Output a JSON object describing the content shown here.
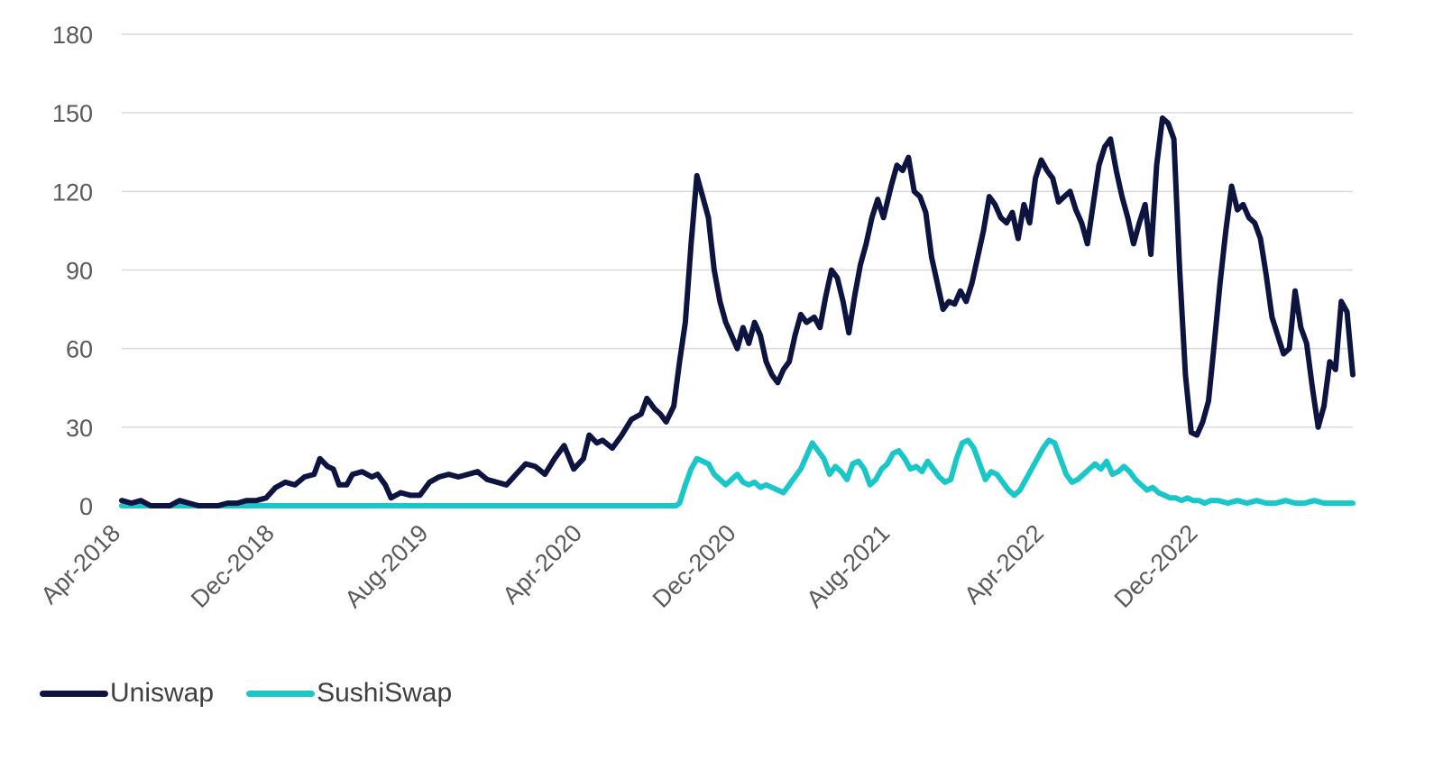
{
  "chart_data": {
    "type": "line",
    "title": "",
    "xlabel": "",
    "ylabel": "",
    "ylim": [
      0,
      180
    ],
    "yticks": [
      0,
      30,
      60,
      90,
      120,
      150,
      180
    ],
    "xlim": [
      0,
      61
    ],
    "xticks": [
      {
        "label": "Apr-2018",
        "x": 0
      },
      {
        "label": "Dec-2018",
        "x": 8
      },
      {
        "label": "Aug-2019",
        "x": 16
      },
      {
        "label": "Apr-2020",
        "x": 24
      },
      {
        "label": "Dec-2020",
        "x": 32
      },
      {
        "label": "Aug-2021",
        "x": 40
      },
      {
        "label": "Apr-2022",
        "x": 48
      },
      {
        "label": "Dec-2022",
        "x": 56
      }
    ],
    "x_unit": "months since Apr-2018",
    "grid": true,
    "legend_position": "bottom-left",
    "series": [
      {
        "name": "Uniswap",
        "color": "#0d1440",
        "points": [
          [
            0,
            2
          ],
          [
            0.5,
            1
          ],
          [
            1,
            2
          ],
          [
            1.5,
            0
          ],
          [
            2,
            0
          ],
          [
            2.5,
            0
          ],
          [
            3,
            2
          ],
          [
            3.5,
            1
          ],
          [
            4,
            0
          ],
          [
            4.5,
            0
          ],
          [
            5,
            0
          ],
          [
            5.5,
            1
          ],
          [
            6,
            1
          ],
          [
            6.5,
            2
          ],
          [
            7,
            2
          ],
          [
            7.5,
            3
          ],
          [
            8,
            7
          ],
          [
            8.5,
            9
          ],
          [
            9,
            8
          ],
          [
            9.5,
            11
          ],
          [
            10,
            12
          ],
          [
            10.3,
            18
          ],
          [
            10.7,
            15
          ],
          [
            11,
            14
          ],
          [
            11.3,
            8
          ],
          [
            11.7,
            8
          ],
          [
            12,
            12
          ],
          [
            12.5,
            13
          ],
          [
            13,
            11
          ],
          [
            13.3,
            12
          ],
          [
            13.7,
            8
          ],
          [
            14,
            3
          ],
          [
            14.5,
            5
          ],
          [
            15,
            4
          ],
          [
            15.5,
            4
          ],
          [
            16,
            9
          ],
          [
            16.5,
            11
          ],
          [
            17,
            12
          ],
          [
            17.5,
            11
          ],
          [
            18,
            12
          ],
          [
            18.5,
            13
          ],
          [
            19,
            10
          ],
          [
            19.5,
            9
          ],
          [
            20,
            8
          ],
          [
            20.5,
            12
          ],
          [
            21,
            16
          ],
          [
            21.5,
            15
          ],
          [
            22,
            12
          ],
          [
            22.5,
            18
          ],
          [
            23,
            23
          ],
          [
            23.5,
            14
          ],
          [
            24,
            18
          ],
          [
            24.3,
            27
          ],
          [
            24.7,
            24
          ],
          [
            25,
            25
          ],
          [
            25.5,
            22
          ],
          [
            26,
            27
          ],
          [
            26.5,
            33
          ],
          [
            27,
            35
          ],
          [
            27.3,
            41
          ],
          [
            27.7,
            37
          ],
          [
            28,
            35
          ],
          [
            28.3,
            32
          ],
          [
            28.7,
            38
          ],
          [
            29,
            55
          ],
          [
            29.3,
            70
          ],
          [
            29.6,
            100
          ],
          [
            29.9,
            126
          ],
          [
            30.2,
            118
          ],
          [
            30.5,
            110
          ],
          [
            30.8,
            90
          ],
          [
            31.1,
            78
          ],
          [
            31.4,
            70
          ],
          [
            31.7,
            65
          ],
          [
            32,
            60
          ],
          [
            32.3,
            68
          ],
          [
            32.6,
            62
          ],
          [
            32.9,
            70
          ],
          [
            33.2,
            65
          ],
          [
            33.5,
            55
          ],
          [
            33.8,
            50
          ],
          [
            34.1,
            47
          ],
          [
            34.4,
            52
          ],
          [
            34.7,
            55
          ],
          [
            35,
            65
          ],
          [
            35.3,
            73
          ],
          [
            35.6,
            70
          ],
          [
            36,
            72
          ],
          [
            36.3,
            68
          ],
          [
            36.6,
            80
          ],
          [
            36.9,
            90
          ],
          [
            37.2,
            87
          ],
          [
            37.5,
            78
          ],
          [
            37.8,
            66
          ],
          [
            38.1,
            80
          ],
          [
            38.4,
            92
          ],
          [
            38.7,
            100
          ],
          [
            39,
            110
          ],
          [
            39.3,
            117
          ],
          [
            39.6,
            110
          ],
          [
            40,
            122
          ],
          [
            40.3,
            130
          ],
          [
            40.6,
            128
          ],
          [
            40.9,
            133
          ],
          [
            41.2,
            120
          ],
          [
            41.5,
            118
          ],
          [
            41.8,
            112
          ],
          [
            42.1,
            95
          ],
          [
            42.4,
            85
          ],
          [
            42.7,
            75
          ],
          [
            43,
            78
          ],
          [
            43.3,
            77
          ],
          [
            43.6,
            82
          ],
          [
            43.9,
            78
          ],
          [
            44.2,
            85
          ],
          [
            44.5,
            95
          ],
          [
            44.8,
            105
          ],
          [
            45.1,
            118
          ],
          [
            45.4,
            115
          ],
          [
            45.7,
            110
          ],
          [
            46,
            108
          ],
          [
            46.3,
            112
          ],
          [
            46.6,
            102
          ],
          [
            46.9,
            115
          ],
          [
            47.2,
            108
          ],
          [
            47.5,
            125
          ],
          [
            47.8,
            132
          ],
          [
            48.1,
            128
          ],
          [
            48.4,
            125
          ],
          [
            48.7,
            116
          ],
          [
            49,
            118
          ],
          [
            49.3,
            120
          ],
          [
            49.6,
            113
          ],
          [
            49.9,
            108
          ],
          [
            50.2,
            100
          ],
          [
            50.5,
            115
          ],
          [
            50.8,
            130
          ],
          [
            51.1,
            137
          ],
          [
            51.4,
            140
          ],
          [
            51.7,
            128
          ],
          [
            52,
            118
          ],
          [
            52.3,
            110
          ],
          [
            52.6,
            100
          ],
          [
            52.9,
            108
          ],
          [
            53.2,
            115
          ],
          [
            53.5,
            96
          ],
          [
            53.8,
            130
          ],
          [
            54.1,
            148
          ],
          [
            54.4,
            146
          ],
          [
            54.7,
            140
          ],
          [
            55,
            90
          ],
          [
            55.3,
            50
          ],
          [
            55.6,
            28
          ],
          [
            55.9,
            27
          ],
          [
            56.2,
            32
          ],
          [
            56.5,
            40
          ],
          [
            56.8,
            62
          ],
          [
            57.1,
            85
          ],
          [
            57.4,
            105
          ],
          [
            57.7,
            122
          ],
          [
            58,
            113
          ],
          [
            58.3,
            115
          ],
          [
            58.6,
            110
          ],
          [
            58.9,
            108
          ],
          [
            59.2,
            102
          ],
          [
            59.5,
            88
          ],
          [
            59.8,
            72
          ],
          [
            60.1,
            65
          ],
          [
            60.4,
            58
          ],
          [
            60.7,
            60
          ],
          [
            61,
            82
          ],
          [
            61.3,
            68
          ],
          [
            61.6,
            62
          ],
          [
            61.9,
            45
          ],
          [
            62.2,
            30
          ],
          [
            62.5,
            38
          ],
          [
            62.8,
            55
          ],
          [
            63.1,
            52
          ],
          [
            63.4,
            78
          ],
          [
            63.7,
            74
          ],
          [
            64,
            50
          ]
        ]
      },
      {
        "name": "SushiSwap",
        "color": "#19c7c9",
        "points": [
          [
            0,
            0
          ],
          [
            5,
            0
          ],
          [
            10,
            0
          ],
          [
            15,
            0
          ],
          [
            20,
            0
          ],
          [
            25,
            0
          ],
          [
            28.8,
            0
          ],
          [
            29,
            1
          ],
          [
            29.3,
            8
          ],
          [
            29.6,
            14
          ],
          [
            29.9,
            18
          ],
          [
            30.2,
            17
          ],
          [
            30.5,
            16
          ],
          [
            30.8,
            12
          ],
          [
            31.1,
            10
          ],
          [
            31.4,
            8
          ],
          [
            31.7,
            10
          ],
          [
            32,
            12
          ],
          [
            32.3,
            9
          ],
          [
            32.6,
            8
          ],
          [
            32.9,
            9
          ],
          [
            33.2,
            7
          ],
          [
            33.5,
            8
          ],
          [
            33.8,
            7
          ],
          [
            34.1,
            6
          ],
          [
            34.4,
            5
          ],
          [
            34.7,
            8
          ],
          [
            35,
            11
          ],
          [
            35.3,
            14
          ],
          [
            35.6,
            19
          ],
          [
            35.9,
            24
          ],
          [
            36.2,
            21
          ],
          [
            36.5,
            18
          ],
          [
            36.8,
            12
          ],
          [
            37.1,
            15
          ],
          [
            37.4,
            13
          ],
          [
            37.7,
            10
          ],
          [
            38,
            16
          ],
          [
            38.3,
            17
          ],
          [
            38.6,
            14
          ],
          [
            38.9,
            8
          ],
          [
            39.2,
            10
          ],
          [
            39.5,
            14
          ],
          [
            39.8,
            16
          ],
          [
            40.1,
            20
          ],
          [
            40.4,
            21
          ],
          [
            40.7,
            18
          ],
          [
            41,
            14
          ],
          [
            41.3,
            15
          ],
          [
            41.6,
            13
          ],
          [
            41.9,
            17
          ],
          [
            42.2,
            14
          ],
          [
            42.5,
            11
          ],
          [
            42.8,
            9
          ],
          [
            43.1,
            10
          ],
          [
            43.4,
            18
          ],
          [
            43.7,
            24
          ],
          [
            44,
            25
          ],
          [
            44.3,
            22
          ],
          [
            44.6,
            16
          ],
          [
            44.9,
            10
          ],
          [
            45.2,
            13
          ],
          [
            45.5,
            12
          ],
          [
            45.8,
            9
          ],
          [
            46.1,
            6
          ],
          [
            46.4,
            4
          ],
          [
            46.7,
            6
          ],
          [
            47,
            10
          ],
          [
            47.3,
            14
          ],
          [
            47.6,
            18
          ],
          [
            47.9,
            22
          ],
          [
            48.2,
            25
          ],
          [
            48.5,
            24
          ],
          [
            48.8,
            18
          ],
          [
            49.1,
            12
          ],
          [
            49.4,
            9
          ],
          [
            49.7,
            10
          ],
          [
            50,
            12
          ],
          [
            50.3,
            14
          ],
          [
            50.6,
            16
          ],
          [
            50.9,
            14
          ],
          [
            51.2,
            17
          ],
          [
            51.5,
            12
          ],
          [
            51.8,
            13
          ],
          [
            52.1,
            15
          ],
          [
            52.4,
            13
          ],
          [
            52.7,
            10
          ],
          [
            53,
            8
          ],
          [
            53.3,
            6
          ],
          [
            53.6,
            7
          ],
          [
            53.9,
            5
          ],
          [
            54.2,
            4
          ],
          [
            54.5,
            3
          ],
          [
            54.8,
            3
          ],
          [
            55.1,
            2
          ],
          [
            55.4,
            3
          ],
          [
            55.7,
            2
          ],
          [
            56,
            2
          ],
          [
            56.3,
            1
          ],
          [
            56.6,
            2
          ],
          [
            57,
            2
          ],
          [
            57.5,
            1
          ],
          [
            58,
            2
          ],
          [
            58.5,
            1
          ],
          [
            59,
            2
          ],
          [
            59.5,
            1
          ],
          [
            60,
            1
          ],
          [
            60.5,
            2
          ],
          [
            61,
            1
          ],
          [
            61.5,
            1
          ],
          [
            62,
            2
          ],
          [
            62.5,
            1
          ],
          [
            63,
            1
          ],
          [
            63.5,
            1
          ],
          [
            64,
            1
          ]
        ]
      }
    ]
  },
  "legend": {
    "items": [
      {
        "label": "Uniswap",
        "color": "#0d1440"
      },
      {
        "label": "SushiSwap",
        "color": "#19c7c9"
      }
    ]
  }
}
